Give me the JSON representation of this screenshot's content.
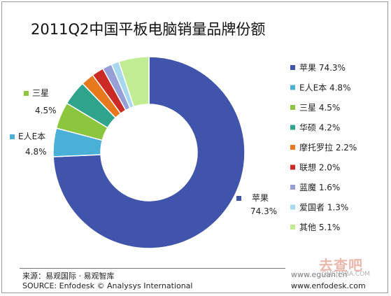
{
  "chart_data": {
    "type": "pie",
    "title": "2011Q2中国平板电脑销量品牌份额",
    "unit": "%",
    "legend_position": "right",
    "slices": [
      {
        "label": "苹果",
        "value": 74.3,
        "display": "74.3%",
        "color": "#4154ac"
      },
      {
        "label": "E人E本",
        "value": 4.8,
        "display": "4.8%",
        "color": "#4ab0d8"
      },
      {
        "label": "三星",
        "value": 4.5,
        "display": "4.5%",
        "color": "#8cc63f"
      },
      {
        "label": "华硕",
        "value": 4.2,
        "display": "4.2%",
        "color": "#2fa48c"
      },
      {
        "label": "摩托罗拉",
        "value": 2.2,
        "display": "2.2%",
        "color": "#e8781e"
      },
      {
        "label": "联想",
        "value": 2.0,
        "display": "2.0%",
        "color": "#cc2a24"
      },
      {
        "label": "蓝魔",
        "value": 1.6,
        "display": "1.6%",
        "color": "#96a0d6"
      },
      {
        "label": "爱国者",
        "value": 1.3,
        "display": "1.3%",
        "color": "#a8d8ee"
      },
      {
        "label": "其他",
        "value": 5.1,
        "display": "5.1%",
        "color": "#c2ec94"
      }
    ],
    "callouts": [
      {
        "slice": 0,
        "name": "苹果",
        "value": "74.3%"
      },
      {
        "slice": 1,
        "name": "E人E本",
        "value": "4.8%"
      },
      {
        "slice": 2,
        "name": "三星",
        "value": "4.5%"
      }
    ]
  },
  "footer": {
    "source_cn": "来源：易观国际 · 易观智库",
    "source_en": "SOURCE: Enfodesk © Analysys International",
    "site1": "www.eguan.cn",
    "site2": "www.enfodesk.com"
  },
  "watermark": {
    "logo": "去查吧",
    "sub": "QUCHABA.COM"
  }
}
